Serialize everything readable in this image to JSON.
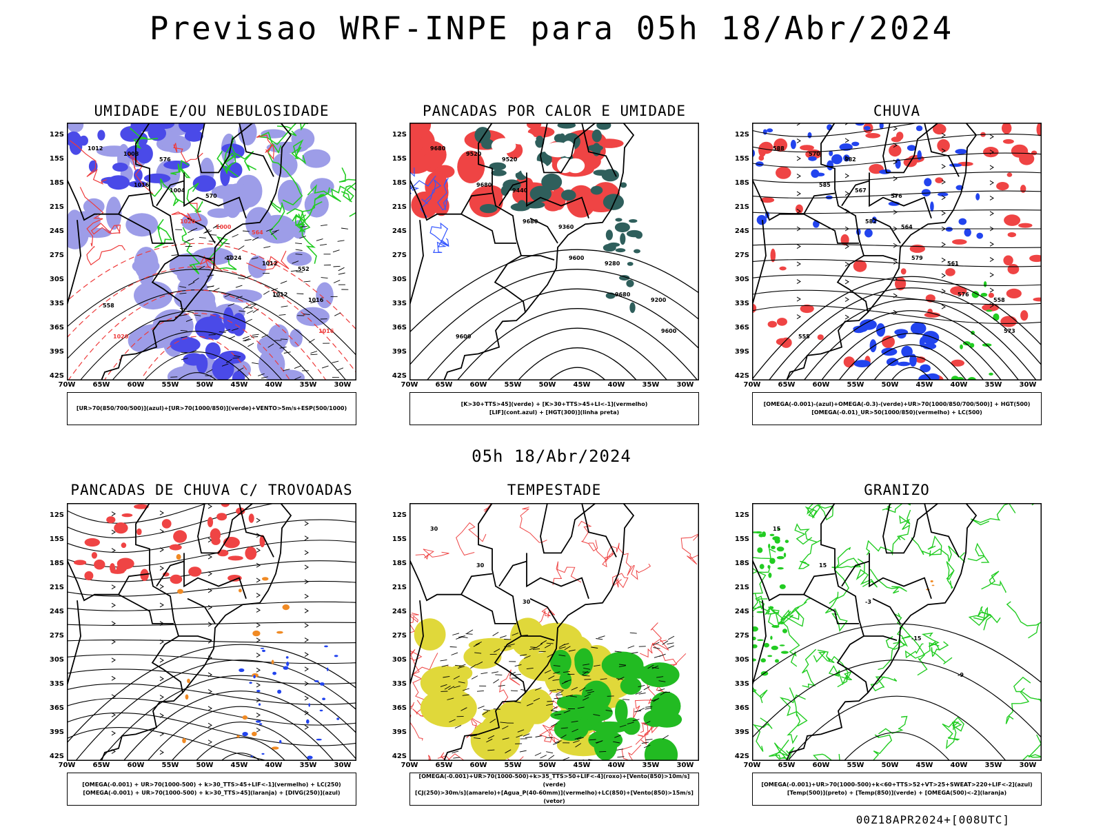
{
  "title": "Previsao WRF-INPE  para 05h 18/Abr/2024",
  "mid_date": "05h 18/Abr/2024",
  "run_stamp": "00Z18APR2024+[008UTC]",
  "axes": {
    "lat_labels": [
      "12S",
      "15S",
      "18S",
      "21S",
      "24S",
      "27S",
      "30S",
      "33S",
      "36S",
      "39S",
      "42S"
    ],
    "lon_labels": [
      "70W",
      "65W",
      "60W",
      "55W",
      "50W",
      "45W",
      "40W",
      "35W",
      "30W"
    ]
  },
  "panels": [
    {
      "id": "umidade",
      "title": "UMIDADE E/OU NEBULOSIDADE",
      "legend": [
        "[UR>70(850/700/500)](azul)+[UR>70(1000/850)](verde)+VENTO>5m/s+ESP(500/1000)"
      ],
      "contour_labels": [
        "1012",
        "1016",
        "1020",
        "1024",
        "1012",
        "1016",
        "1008",
        "1004",
        "1000",
        "1012",
        "1016",
        "1020",
        "576",
        "570",
        "564",
        "552",
        "558"
      ],
      "colors": {
        "fill1": "#4a4ae8",
        "fill2": "#9d9de8",
        "line1": "#22cc22",
        "line2": "#ee3a3a"
      }
    },
    {
      "id": "pancadas-calor",
      "title": "PANCADAS POR CALOR E UMIDADE",
      "legend": [
        "[K>30+TTS>45](verde) + [K>30+TTS>45+LI<-1](vermelho)",
        "[LIF](cont.azul) + [HGT(300)](linha preta)"
      ],
      "contour_labels": [
        "9680",
        "9680",
        "9680",
        "9600",
        "9680",
        "9600",
        "9520",
        "9440",
        "9360",
        "9280",
        "9200",
        "9600",
        "9520"
      ],
      "colors": {
        "fill1": "#ef4444",
        "fill2": "#2f5f5c",
        "line1": "#3355ff",
        "line2": "#000000"
      }
    },
    {
      "id": "chuva",
      "title": "CHUVA",
      "legend": [
        "[OMEGA(-0.001)-(azul)+OMEGA(-0.3)-(verde)+UR>70(1000/850/700/500)] + HGT(500)",
        "[OMEGA(-0.01)_UR>50(1000/850)(vermelho) + LC(500)"
      ],
      "contour_labels": [
        "588",
        "585",
        "582",
        "579",
        "576",
        "573",
        "570",
        "567",
        "564",
        "561",
        "558",
        "555",
        "582",
        "576"
      ],
      "colors": {
        "fill1": "#2244ee",
        "fill2": "#ef4444",
        "line1": "#22cc22",
        "line2": "#000000"
      }
    },
    {
      "id": "trovoadas",
      "title": "PANCADAS DE CHUVA C/ TROVOADAS",
      "legend": [
        "[OMEGA(-0.001) + UR>70(1000-500) + k>30_TTS>45+LIF<-1](vermelho) + LC(250)",
        "[OMEGA(-0.001) + UR>70(1000-500) + k>30_TTS>45](laranja) + [DIVG(250)](azul)"
      ],
      "contour_labels": [],
      "colors": {
        "fill1": "#ef4444",
        "fill2": "#f08a24",
        "line1": "#2244ee",
        "line2": "#000000"
      }
    },
    {
      "id": "tempestade",
      "title": "TEMPESTADE",
      "legend": [
        "[OMEGA(-0.001)+UR>70(1000-500)+k>35_TTS>50+LIF<-4](roxo)+[Vento(850)>10m/s](verde)",
        "[CJ(250)>30m/s](amarelo)+[Agua_P(40-60mm)](vermelho)+LC(850)+[Vento(850)>15m/s](vetor)"
      ],
      "contour_labels": [
        "30",
        "30",
        "30"
      ],
      "colors": {
        "fill1": "#e0d83a",
        "fill2": "#22bb22",
        "line1": "#ee4444",
        "line2": "#000000"
      }
    },
    {
      "id": "granizo",
      "title": "GRANIZO",
      "legend": [
        "[OMEGA(-0.001)+UR>70(1000-500)+k<60+TTS>52+VT>25+SWEAT>220+LIF<-2](azul)",
        "[Temp(500)](preto) + [Temp(850)](verde) + [OMEGA(500)<-2](laranja)"
      ],
      "contour_labels": [
        "15",
        "15",
        "-3",
        "-15",
        "-9"
      ],
      "colors": {
        "fill1": "#22cc22",
        "fill2": "#f08a24",
        "line1": "#22cc22",
        "line2": "#000000"
      }
    }
  ]
}
